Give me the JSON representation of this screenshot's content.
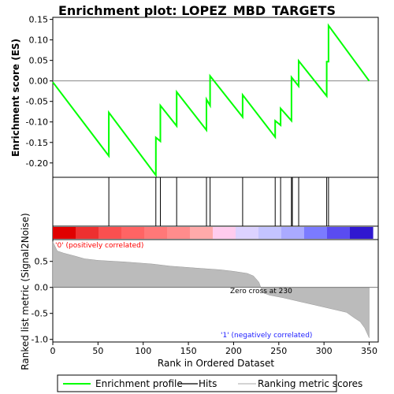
{
  "chart_data": [
    {
      "type": "line",
      "title": "Enrichment plot: LOPEZ_MBD_TARGETS",
      "ylabel": "Enrichment score (ES)",
      "xlim": [
        0,
        360
      ],
      "ylim": [
        -0.235,
        0.155
      ],
      "yticks": [
        "-0.20",
        "-0.15",
        "-0.10",
        "-0.05",
        "0.00",
        "0.05",
        "0.10",
        "0.15"
      ],
      "series": [
        {
          "name": "Enrichment profile",
          "color": "#00ff00",
          "x": [
            0,
            62,
            62,
            114,
            114,
            119,
            119,
            137,
            137,
            170,
            170,
            174,
            174,
            210,
            210,
            246,
            246,
            252,
            252,
            264,
            264,
            272,
            272,
            303,
            303,
            305,
            305,
            350
          ],
          "y": [
            -0.003,
            -0.183,
            -0.077,
            -0.23,
            -0.138,
            -0.147,
            -0.06,
            -0.11,
            -0.027,
            -0.12,
            -0.045,
            -0.06,
            0.012,
            -0.088,
            -0.034,
            -0.137,
            -0.097,
            -0.108,
            -0.067,
            -0.097,
            0.009,
            -0.013,
            0.049,
            -0.037,
            0.047,
            0.047,
            0.135,
            0.0
          ]
        }
      ],
      "hits": [
        62,
        114,
        119,
        137,
        170,
        174,
        210,
        246,
        252,
        264,
        265,
        272,
        303,
        305
      ]
    },
    {
      "type": "area",
      "xlabel": "Rank in Ordered Dataset",
      "ylabel": "Ranked list metric (Signal2Noise)",
      "xlim": [
        0,
        360
      ],
      "ylim": [
        -1.05,
        0.92
      ],
      "xticks": [
        "0",
        "50",
        "100",
        "150",
        "200",
        "250",
        "300",
        "350"
      ],
      "yticks": [
        "-1.0",
        "-0.5",
        "0.0",
        "0.5"
      ],
      "series": [
        {
          "name": "Ranking metric scores",
          "x": [
            0,
            5,
            12,
            25,
            35,
            50,
            80,
            110,
            130,
            160,
            185,
            200,
            215,
            222,
            228,
            230,
            232,
            240,
            255,
            270,
            290,
            310,
            325,
            333,
            340,
            345,
            350
          ],
          "y": [
            0.88,
            0.7,
            0.66,
            0.6,
            0.55,
            0.52,
            0.49,
            0.45,
            0.41,
            0.37,
            0.34,
            0.31,
            0.27,
            0.22,
            0.1,
            0.0,
            -0.1,
            -0.15,
            -0.2,
            -0.26,
            -0.34,
            -0.42,
            -0.48,
            -0.58,
            -0.66,
            -0.78,
            -0.97
          ]
        }
      ],
      "annotations": [
        "'0' (positively correlated)",
        "Zero cross at 230",
        "'1' (negatively correlated)"
      ]
    }
  ],
  "heatmap_colors": [
    "#e00000",
    "#ee3030",
    "#fa5050",
    "#ff6464",
    "#ff7878",
    "#ff8c8c",
    "#ffaaaa",
    "#ffccee",
    "#dcd2ff",
    "#c4c4ff",
    "#aaaaff",
    "#7b7bff",
    "#5a4cf0",
    "#3018d0"
  ],
  "legend": [
    "Enrichment profile",
    "Hits",
    "Ranking metric scores"
  ],
  "colors": {
    "profile": "#00ff00",
    "hits": "#000000",
    "metric": "#bbbbbb"
  }
}
